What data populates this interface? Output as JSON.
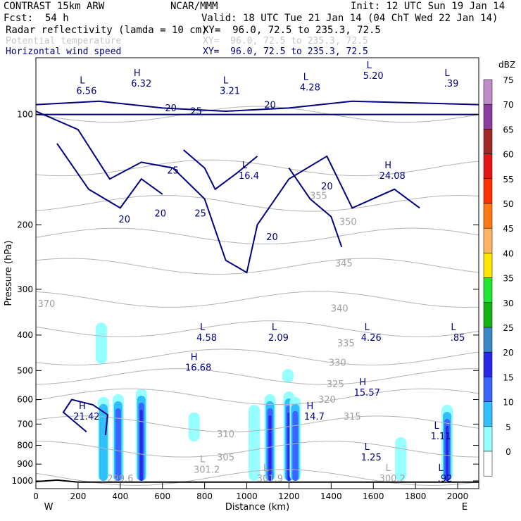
{
  "header": {
    "model": "CONTRAST 15km ARW",
    "center": "NCAR/MMM",
    "init": "Init: 12 UTC Sun 19 Jan 14",
    "fcst_label": "Fcst:",
    "fcst_value": "54 h",
    "valid": "Valid: 18 UTC Tue 21 Jan 14 (04 ChT Wed 22 Jan 14)"
  },
  "fields": [
    {
      "name": "Radar reflectivity (lamda = 10 cm)",
      "xy": "XY=  96.0, 72.5 to 235.3, 72.5",
      "color": "#000000"
    },
    {
      "name": "Potential temperature",
      "xy": "XY=  96.0, 72.5 to 235.3, 72.5",
      "color": "#b4b4b4"
    },
    {
      "name": "Horizontal wind speed",
      "xy": "XY=  96.0, 72.5 to 235.3, 72.5",
      "color": "#000080"
    }
  ],
  "colorbar": {
    "unit": "dBZ",
    "levels": [
      "0",
      "5",
      "10",
      "15",
      "20",
      "25",
      "30",
      "35",
      "40",
      "45",
      "50",
      "55",
      "60",
      "65",
      "70",
      "75"
    ],
    "colors": [
      "#ffffff",
      "#96ffff",
      "#32bfff",
      "#3c64ff",
      "#2828e6",
      "#3c87c8",
      "#14b414",
      "#1ee632",
      "#ffe600",
      "#ffb464",
      "#ff7814",
      "#ff3200",
      "#e61414",
      "#a02828",
      "#8c3ca0",
      "#be8cc8"
    ]
  },
  "chart_data": {
    "type": "contour",
    "title": "",
    "xlabel": "Distance (km)",
    "ylabel": "Pressure (hPa)",
    "xlim": [
      0,
      2100
    ],
    "ylim": [
      1050,
      70
    ],
    "y_scale": "log",
    "x_ticks": [
      "0",
      "200",
      "400",
      "600",
      "800",
      "1000",
      "1200",
      "1400",
      "1600",
      "1800",
      "2000"
    ],
    "y_ticks": [
      "100",
      "200",
      "300",
      "400",
      "500",
      "600",
      "700",
      "800",
      "900",
      "1000"
    ],
    "x_end_labels": {
      "left": "W",
      "right": "E"
    },
    "reflectivity_cells": [
      {
        "x": 310,
        "p_top": 370,
        "p_bot": 480,
        "dbz": 5
      },
      {
        "x": 320,
        "p_top": 590,
        "p_bot": 1000,
        "dbz": 10
      },
      {
        "x": 390,
        "p_top": 580,
        "p_bot": 1000,
        "dbz": 15
      },
      {
        "x": 500,
        "p_top": 560,
        "p_bot": 1000,
        "dbz": 20
      },
      {
        "x": 750,
        "p_top": 650,
        "p_bot": 780,
        "dbz": 5
      },
      {
        "x": 1035,
        "p_top": 620,
        "p_bot": 1000,
        "dbz": 5
      },
      {
        "x": 1110,
        "p_top": 580,
        "p_bot": 1000,
        "dbz": 20
      },
      {
        "x": 1200,
        "p_top": 570,
        "p_bot": 1000,
        "dbz": 20
      },
      {
        "x": 1230,
        "p_top": 590,
        "p_bot": 1000,
        "dbz": 15
      },
      {
        "x": 1195,
        "p_top": 495,
        "p_bot": 540,
        "dbz": 5
      },
      {
        "x": 1730,
        "p_top": 760,
        "p_bot": 1000,
        "dbz": 5
      },
      {
        "x": 1950,
        "p_top": 620,
        "p_bot": 1000,
        "dbz": 20
      }
    ],
    "theta_contour_labels": [
      {
        "text": "355",
        "x": 1340,
        "p": 170
      },
      {
        "text": "350",
        "x": 1480,
        "p": 200
      },
      {
        "text": "345",
        "x": 1460,
        "p": 260
      },
      {
        "text": "340",
        "x": 1440,
        "p": 345
      },
      {
        "text": "335",
        "x": 1470,
        "p": 430
      },
      {
        "text": "330",
        "x": 1430,
        "p": 485
      },
      {
        "text": "325",
        "x": 1420,
        "p": 555
      },
      {
        "text": "320",
        "x": 1380,
        "p": 612
      },
      {
        "text": "315",
        "x": 1500,
        "p": 680
      },
      {
        "text": "310",
        "x": 900,
        "p": 760
      },
      {
        "text": "305",
        "x": 900,
        "p": 880
      },
      {
        "text": "370",
        "x": 50,
        "p": 335
      }
    ],
    "wind_contour_labels": [
      {
        "text": "20",
        "x": 640,
        "p": 98
      },
      {
        "text": "25",
        "x": 760,
        "p": 100
      },
      {
        "text": "20",
        "x": 1110,
        "p": 96
      },
      {
        "text": "25",
        "x": 650,
        "p": 145
      },
      {
        "text": "25",
        "x": 780,
        "p": 190
      },
      {
        "text": "20",
        "x": 590,
        "p": 190
      },
      {
        "text": "20",
        "x": 420,
        "p": 197
      },
      {
        "text": "20",
        "x": 1380,
        "p": 160
      },
      {
        "text": "20",
        "x": 1120,
        "p": 220
      }
    ],
    "extrema": [
      {
        "kind": "L",
        "value": "6.56",
        "x": 240,
        "p": 88
      },
      {
        "kind": "H",
        "value": "6.32",
        "x": 500,
        "p": 84
      },
      {
        "kind": "L",
        "value": "3.21",
        "x": 920,
        "p": 88
      },
      {
        "kind": "L",
        "value": "4.28",
        "x": 1300,
        "p": 86
      },
      {
        "kind": "L",
        "value": "5.20",
        "x": 1600,
        "p": 80
      },
      {
        "kind": "L",
        "value": ".39",
        "x": 1970,
        "p": 84
      },
      {
        "kind": "L",
        "value": "16.4",
        "x": 1010,
        "p": 150
      },
      {
        "kind": "H",
        "value": "24.08",
        "x": 1690,
        "p": 150
      },
      {
        "kind": "L",
        "value": "4.58",
        "x": 810,
        "p": 415
      },
      {
        "kind": "L",
        "value": "2.09",
        "x": 1150,
        "p": 415
      },
      {
        "kind": "L",
        "value": "4.26",
        "x": 1590,
        "p": 415
      },
      {
        "kind": "L",
        "value": ".85",
        "x": 2000,
        "p": 415
      },
      {
        "kind": "H",
        "value": "16.68",
        "x": 770,
        "p": 500
      },
      {
        "kind": "H",
        "value": "15.57",
        "x": 1570,
        "p": 585
      },
      {
        "kind": "H",
        "value": "21.42",
        "x": 240,
        "p": 680
      },
      {
        "kind": "H",
        "value": "14.7",
        "x": 1320,
        "p": 680
      },
      {
        "kind": "L",
        "value": "1.11",
        "x": 1920,
        "p": 770
      },
      {
        "kind": "L",
        "value": "1.25",
        "x": 1590,
        "p": 880
      },
      {
        "kind": "L",
        "value": "301.2",
        "x": 810,
        "p": 950,
        "field": "theta"
      },
      {
        "kind": "L",
        "value": "301.9",
        "x": 1110,
        "p": 1005,
        "field": "theta"
      },
      {
        "kind": "L",
        "value": "300.2",
        "x": 1690,
        "p": 1005,
        "field": "theta"
      },
      {
        "kind": "L",
        "value": ".92",
        "x": 1940,
        "p": 1005
      },
      {
        "kind": "",
        "value": "299.6",
        "x": 400,
        "p": 1005,
        "field": "theta"
      }
    ]
  }
}
